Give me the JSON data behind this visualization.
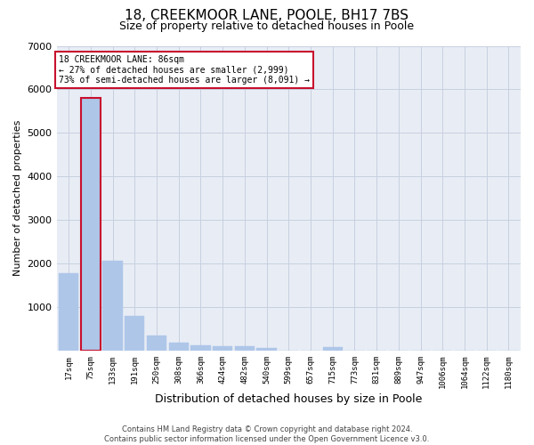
{
  "title": "18, CREEKMOOR LANE, POOLE, BH17 7BS",
  "subtitle": "Size of property relative to detached houses in Poole",
  "xlabel": "Distribution of detached houses by size in Poole",
  "ylabel": "Number of detached properties",
  "annotation_line1": "18 CREEKMOOR LANE: 86sqm",
  "annotation_line2": "← 27% of detached houses are smaller (2,999)",
  "annotation_line3": "73% of semi-detached houses are larger (8,091) →",
  "footer1": "Contains HM Land Registry data © Crown copyright and database right 2024.",
  "footer2": "Contains public sector information licensed under the Open Government Licence v3.0.",
  "bar_labels": [
    "17sqm",
    "75sqm",
    "133sqm",
    "191sqm",
    "250sqm",
    "308sqm",
    "366sqm",
    "424sqm",
    "482sqm",
    "540sqm",
    "599sqm",
    "657sqm",
    "715sqm",
    "773sqm",
    "831sqm",
    "889sqm",
    "947sqm",
    "1006sqm",
    "1064sqm",
    "1122sqm",
    "1180sqm"
  ],
  "bar_values": [
    1780,
    5800,
    2060,
    800,
    340,
    190,
    130,
    110,
    100,
    70,
    0,
    0,
    90,
    0,
    0,
    0,
    0,
    0,
    0,
    0,
    0
  ],
  "bar_color": "#aec6e8",
  "highlight_bar_index": 1,
  "highlight_color": "#c8102e",
  "grid_color": "#c8d0e0",
  "bg_color": "#e8edf5",
  "ylim": [
    0,
    7000
  ],
  "yticks": [
    0,
    1000,
    2000,
    3000,
    4000,
    5000,
    6000,
    7000
  ],
  "annotation_box_color": "#c8102e",
  "title_fontsize": 11,
  "subtitle_fontsize": 9,
  "bar_width": 0.9
}
